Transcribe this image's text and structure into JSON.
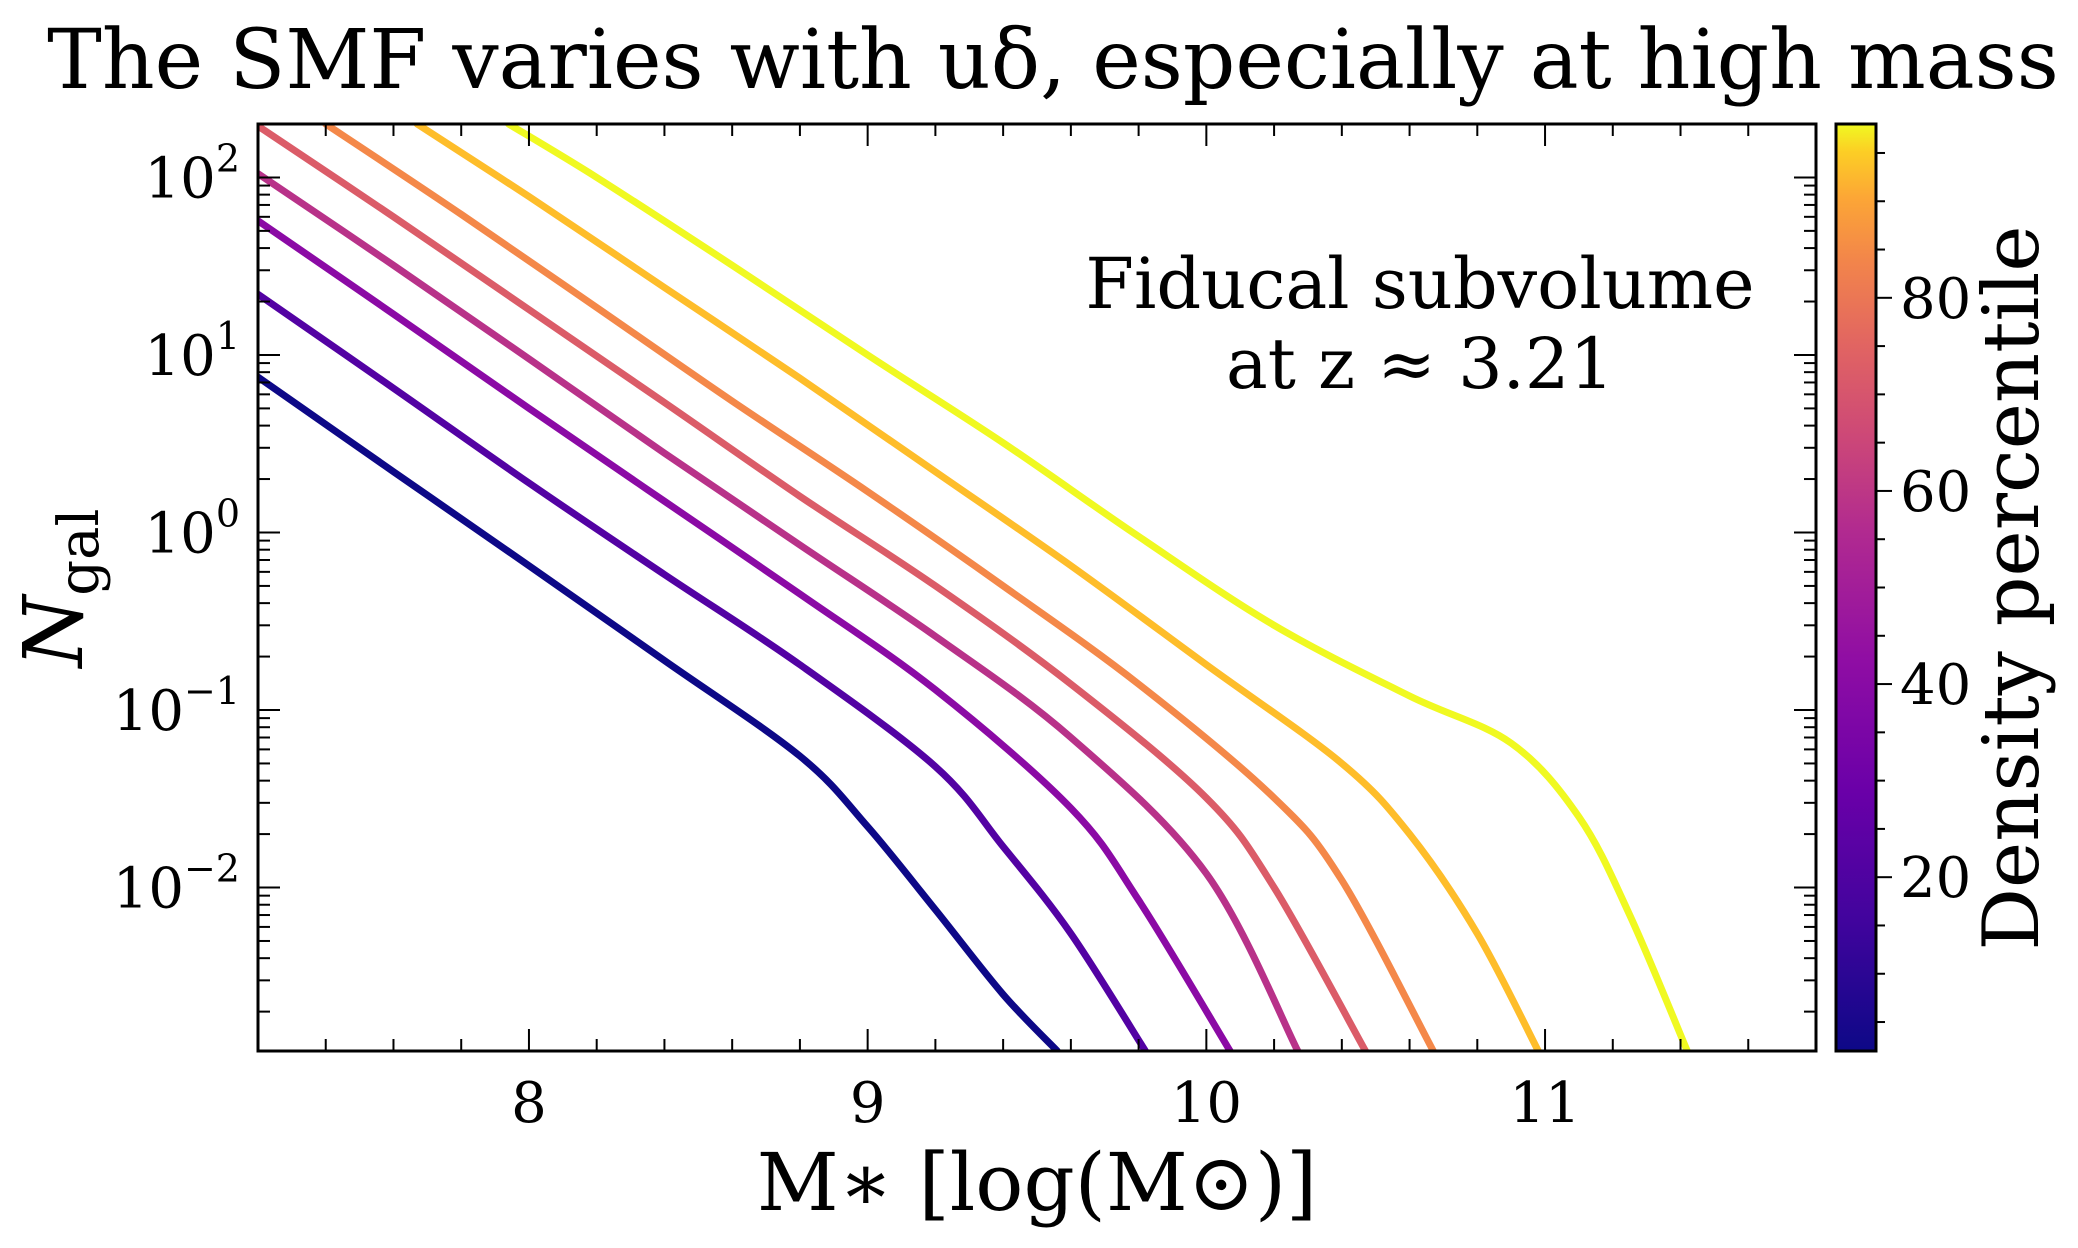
{
  "chart_data": {
    "type": "line",
    "title": "The SMF varies with uδ, especially at high mass",
    "xlabel": "M∗ [log(M⊙)]",
    "ylabel": "Ngal",
    "xlim": [
      7.2,
      11.8
    ],
    "ylim": [
      0.0012,
      200
    ],
    "yscale": "log",
    "grid": false,
    "x_ticks": [
      {
        "value": 8,
        "label": "8"
      },
      {
        "value": 9,
        "label": "9"
      },
      {
        "value": 10,
        "label": "10"
      },
      {
        "value": 11,
        "label": "11"
      }
    ],
    "y_ticks": [
      {
        "value": 100,
        "base": "10",
        "exp": "2"
      },
      {
        "value": 10,
        "base": "10",
        "exp": "1"
      },
      {
        "value": 1,
        "base": "10",
        "exp": "0"
      },
      {
        "value": 0.1,
        "base": "10",
        "exp": "−1"
      },
      {
        "value": 0.01,
        "base": "10",
        "exp": "−2"
      }
    ],
    "annotation": {
      "line1": "Fiducal subvolume",
      "line2": "at z ≈ 3.21"
    },
    "colorbar": {
      "label": "Density percentile",
      "range": [
        2,
        98
      ],
      "colormap": "plasma",
      "ticks": [
        {
          "value": 20,
          "label": "20"
        },
        {
          "value": 40,
          "label": "40"
        },
        {
          "value": 60,
          "label": "60"
        },
        {
          "value": 80,
          "label": "80"
        }
      ]
    },
    "series": [
      {
        "percentile": 2,
        "color": "#0d0887",
        "x": [
          7.2,
          7.6,
          8.0,
          8.4,
          8.8,
          9.0,
          9.2,
          9.4,
          9.56
        ],
        "y": [
          7.5,
          2.2,
          0.65,
          0.19,
          0.055,
          0.022,
          0.0075,
          0.0025,
          0.0012
        ]
      },
      {
        "percentile": 16,
        "color": "#5302a3",
        "x": [
          7.2,
          7.6,
          8.0,
          8.4,
          8.8,
          9.2,
          9.4,
          9.6,
          9.82
        ],
        "y": [
          22,
          6.5,
          1.9,
          0.58,
          0.18,
          0.048,
          0.017,
          0.0055,
          0.0012
        ]
      },
      {
        "percentile": 30,
        "color": "#8b0aa5",
        "x": [
          7.2,
          7.6,
          8.0,
          8.4,
          8.8,
          9.2,
          9.6,
          9.8,
          10.07
        ],
        "y": [
          57,
          17,
          5,
          1.5,
          0.45,
          0.13,
          0.028,
          0.0085,
          0.0012
        ]
      },
      {
        "percentile": 44,
        "color": "#b83289",
        "x": [
          7.2,
          7.6,
          8.0,
          8.4,
          8.8,
          9.2,
          9.6,
          10.0,
          10.27
        ],
        "y": [
          105,
          32,
          9.5,
          2.8,
          0.85,
          0.26,
          0.07,
          0.012,
          0.0012
        ]
      },
      {
        "percentile": 58,
        "color": "#db5c68",
        "x": [
          7.2,
          7.6,
          8.0,
          8.4,
          8.8,
          9.2,
          9.6,
          10.0,
          10.2,
          10.47
        ],
        "y": [
          195,
          60,
          18,
          5.4,
          1.6,
          0.5,
          0.14,
          0.032,
          0.01,
          0.0012
        ]
      },
      {
        "percentile": 72,
        "color": "#f48849",
        "x": [
          7.4,
          7.8,
          8.2,
          8.6,
          9.0,
          9.4,
          9.8,
          10.2,
          10.4,
          10.67
        ],
        "y": [
          200,
          62,
          18.5,
          5.5,
          1.7,
          0.5,
          0.14,
          0.032,
          0.011,
          0.0012
        ]
      },
      {
        "percentile": 86,
        "color": "#febd2a",
        "x": [
          7.67,
          8.0,
          8.4,
          8.8,
          9.2,
          9.6,
          10.0,
          10.4,
          10.6,
          10.8,
          10.98
        ],
        "y": [
          200,
          78,
          24,
          7.4,
          2.2,
          0.65,
          0.18,
          0.05,
          0.02,
          0.0055,
          0.0012
        ]
      },
      {
        "percentile": 98,
        "color": "#f0f921",
        "x": [
          7.94,
          8.2,
          8.6,
          9.0,
          9.4,
          9.8,
          10.2,
          10.6,
          10.9,
          11.1,
          11.25,
          11.42
        ],
        "y": [
          200,
          100,
          32,
          10,
          3.2,
          0.95,
          0.3,
          0.12,
          0.065,
          0.025,
          0.007,
          0.0012
        ]
      }
    ]
  }
}
